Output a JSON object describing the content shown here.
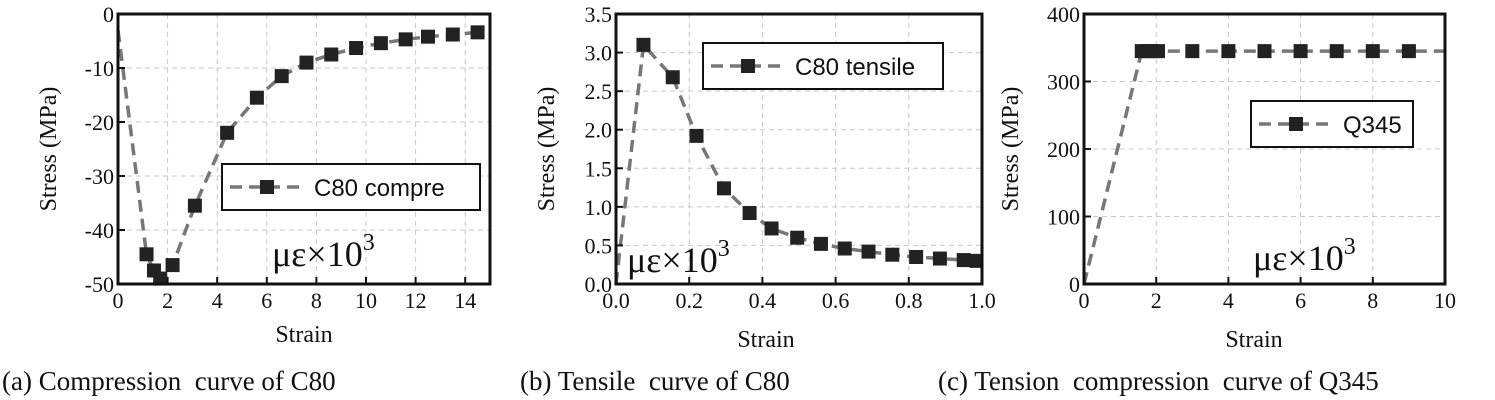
{
  "chart_data": [
    {
      "type": "line",
      "title": "",
      "caption": "(a) Compression  curve of C80",
      "xlabel": "Strain",
      "ylabel": "Stress (MPa)",
      "xlim": [
        0,
        15
      ],
      "ylim": [
        -50,
        0
      ],
      "xticks": [
        0,
        2,
        4,
        6,
        8,
        10,
        12,
        14
      ],
      "yticks": [
        -50,
        -40,
        -30,
        -20,
        -10,
        0
      ],
      "xtick_labels": [
        "0",
        "2",
        "4",
        "6",
        "8",
        "10",
        "12",
        "14"
      ],
      "ytick_labels": [
        "-50",
        "-40",
        "-30",
        "-20",
        "-10",
        "0"
      ],
      "grid": true,
      "unit_annotation": "με×10",
      "unit_exponent": "3",
      "legend_position": "center-right",
      "series": [
        {
          "name": "C80 compre",
          "color": "#777777",
          "marker_color": "#222222",
          "line_x": [
            0,
            1.15,
            1.45,
            1.7,
            2.2,
            3.1,
            4.4,
            5.6,
            6.6,
            7.6,
            8.6,
            9.6,
            10.6,
            11.6,
            12.5,
            13.5,
            14.5
          ],
          "line_y": [
            -3,
            -44.5,
            -47.5,
            -49,
            -46.5,
            -35.5,
            -22,
            -15.5,
            -11.5,
            -9,
            -7.5,
            -6.3,
            -5.4,
            -4.7,
            -4.2,
            -3.8,
            -3.4
          ],
          "x": [
            1.15,
            1.45,
            1.7,
            2.2,
            3.1,
            4.4,
            5.6,
            6.6,
            7.6,
            8.6,
            9.6,
            10.6,
            11.6,
            12.5,
            13.5,
            14.5
          ],
          "y": [
            -44.5,
            -47.5,
            -49,
            -46.5,
            -35.5,
            -22,
            -15.5,
            -11.5,
            -9,
            -7.5,
            -6.3,
            -5.4,
            -4.7,
            -4.2,
            -3.8,
            -3.4
          ]
        }
      ]
    },
    {
      "type": "line",
      "title": "",
      "caption": "(b) Tensile  curve of C80",
      "xlabel": "Strain",
      "ylabel": "Stress (MPa)",
      "xlim": [
        0,
        1.0
      ],
      "ylim": [
        0,
        3.5
      ],
      "xticks": [
        0,
        0.2,
        0.4,
        0.6,
        0.8,
        1.0
      ],
      "yticks": [
        0,
        0.5,
        1.0,
        1.5,
        2.0,
        2.5,
        3.0,
        3.5
      ],
      "xtick_labels": [
        "0.0",
        "0.2",
        "0.4",
        "0.6",
        "0.8",
        "1.0"
      ],
      "ytick_labels": [
        "0.0",
        "0.5",
        "1.0",
        "1.5",
        "2.0",
        "2.5",
        "3.0",
        "3.5"
      ],
      "grid": true,
      "unit_annotation": "με×10",
      "unit_exponent": "3",
      "legend_position": "top-right",
      "series": [
        {
          "name": "C80 tensile",
          "color": "#777777",
          "marker_color": "#222222",
          "line_x": [
            0,
            0.075,
            0.155,
            0.22,
            0.295,
            0.365,
            0.425,
            0.495,
            0.56,
            0.625,
            0.69,
            0.755,
            0.82,
            0.885,
            0.95,
            0.985
          ],
          "line_y": [
            0,
            3.1,
            2.68,
            1.92,
            1.24,
            0.92,
            0.72,
            0.6,
            0.52,
            0.46,
            0.42,
            0.38,
            0.35,
            0.33,
            0.31,
            0.3
          ],
          "x": [
            0.075,
            0.155,
            0.22,
            0.295,
            0.365,
            0.425,
            0.495,
            0.56,
            0.625,
            0.69,
            0.755,
            0.82,
            0.885,
            0.95,
            0.985
          ],
          "y": [
            3.1,
            2.68,
            1.92,
            1.24,
            0.92,
            0.72,
            0.6,
            0.52,
            0.46,
            0.42,
            0.38,
            0.35,
            0.33,
            0.31,
            0.3
          ]
        }
      ]
    },
    {
      "type": "line",
      "title": "",
      "caption": "(c) Tension  compression  curve of Q345",
      "xlabel": "Strain",
      "ylabel": "Stress (MPa)",
      "xlim": [
        0,
        10
      ],
      "ylim": [
        0,
        400
      ],
      "xticks": [
        0,
        2,
        4,
        6,
        8,
        10
      ],
      "yticks": [
        0,
        100,
        200,
        300,
        400
      ],
      "xtick_labels": [
        "0",
        "2",
        "4",
        "6",
        "8",
        "10"
      ],
      "ytick_labels": [
        "0",
        "100",
        "200",
        "300",
        "400"
      ],
      "grid": true,
      "unit_annotation": "με×10",
      "unit_exponent": "3",
      "legend_position": "center-right",
      "series": [
        {
          "name": "Q345",
          "color": "#777777",
          "marker_color": "#222222",
          "line_x": [
            0,
            1.6,
            1.75,
            1.9,
            2.05,
            3,
            4,
            5,
            6,
            7,
            8,
            9,
            10
          ],
          "line_y": [
            0,
            345,
            345,
            345,
            345,
            345,
            345,
            345,
            345,
            345,
            345,
            345,
            345
          ],
          "x": [
            1.6,
            1.75,
            1.9,
            2.05,
            3,
            4,
            5,
            6,
            7,
            8,
            9
          ],
          "y": [
            345,
            345,
            345,
            345,
            345,
            345,
            345,
            345,
            345,
            345,
            345
          ]
        }
      ]
    }
  ]
}
